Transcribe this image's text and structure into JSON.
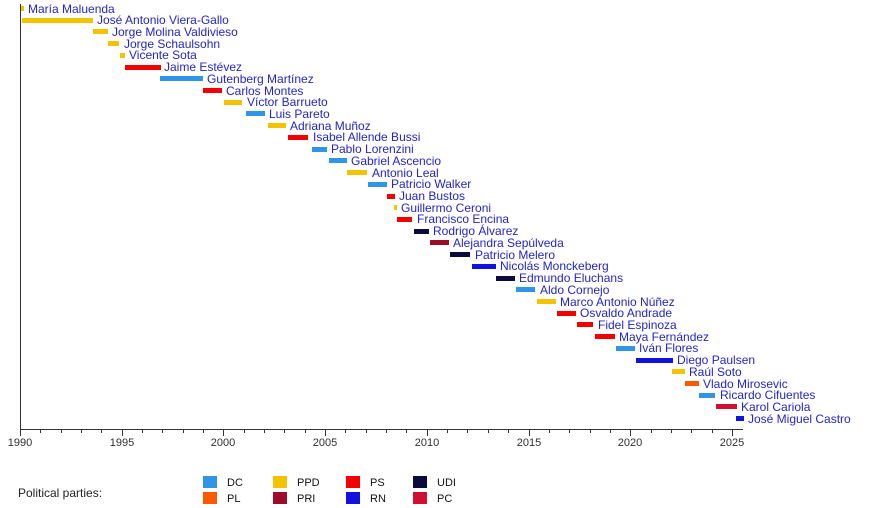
{
  "chart_data": {
    "type": "bar",
    "variant": "horizontal-timeline",
    "title": "",
    "xlabel": "",
    "ylabel": "",
    "grid": false,
    "legend_position": "bottom-left",
    "x_axis": {
      "min": 1990,
      "max": 2025.6,
      "major_ticks": [
        1990,
        1995,
        2000,
        2005,
        2010,
        2015,
        2020,
        2025
      ],
      "minor_tick_interval_years": 1
    },
    "bars": [
      {
        "name": "María Maluenda",
        "party": "PPD",
        "start": 1990.05,
        "end": 1990.2
      },
      {
        "name": "José Antonio Viera-Gallo",
        "party": "PPD",
        "start": 1990.1,
        "end": 1993.6
      },
      {
        "name": "Jorge Molina Valdivieso",
        "party": "PPD",
        "start": 1993.6,
        "end": 1994.35
      },
      {
        "name": "Jorge Schaulsohn",
        "party": "PPD",
        "start": 1994.35,
        "end": 1994.9
      },
      {
        "name": "Vicente Sota",
        "party": "PPD",
        "start": 1994.9,
        "end": 1995.15
      },
      {
        "name": "Jaime Estévez",
        "party": "PS",
        "start": 1995.15,
        "end": 1996.9
      },
      {
        "name": "Gutenberg Martínez",
        "party": "DC",
        "start": 1996.9,
        "end": 1999.0
      },
      {
        "name": "Carlos Montes",
        "party": "PS",
        "start": 1999.0,
        "end": 1999.95
      },
      {
        "name": "Víctor Barrueto",
        "party": "PPD",
        "start": 2000.05,
        "end": 2000.95
      },
      {
        "name": "Luis Pareto",
        "party": "DC",
        "start": 2001.1,
        "end": 2002.05
      },
      {
        "name": "Adriana Muñoz",
        "party": "PPD",
        "start": 2002.2,
        "end": 2003.1
      },
      {
        "name": "Isabel Allende Bussi",
        "party": "PS",
        "start": 2003.2,
        "end": 2004.2
      },
      {
        "name": "Pablo Lorenzini",
        "party": "DC",
        "start": 2004.35,
        "end": 2005.1
      },
      {
        "name": "Gabriel Ascencio",
        "party": "DC",
        "start": 2005.2,
        "end": 2006.1
      },
      {
        "name": "Antonio Leal",
        "party": "PPD",
        "start": 2006.1,
        "end": 2007.1
      },
      {
        "name": "Patricio Walker",
        "party": "DC",
        "start": 2007.1,
        "end": 2008.05
      },
      {
        "name": "Juan Bustos",
        "party": "PS",
        "start": 2008.05,
        "end": 2008.45
      },
      {
        "name": "Guillermo Ceroni",
        "party": "PPD",
        "start": 2008.4,
        "end": 2008.55
      },
      {
        "name": "Francisco Encina",
        "party": "PS",
        "start": 2008.55,
        "end": 2009.3
      },
      {
        "name": "Rodrigo Álvarez",
        "party": "UDI",
        "start": 2009.35,
        "end": 2010.1
      },
      {
        "name": "Alejandra Sepúlveda",
        "party": "PRI",
        "start": 2010.15,
        "end": 2011.1
      },
      {
        "name": "Patricio Melero",
        "party": "UDI",
        "start": 2011.15,
        "end": 2012.15
      },
      {
        "name": "Nicolás Monckeberg",
        "party": "RN",
        "start": 2012.2,
        "end": 2013.4
      },
      {
        "name": "Edmundo Eluchans",
        "party": "UDI",
        "start": 2013.4,
        "end": 2014.35
      },
      {
        "name": "Aldo Cornejo",
        "party": "DC",
        "start": 2014.4,
        "end": 2015.35
      },
      {
        "name": "Marco Antonio Núñez",
        "party": "PPD",
        "start": 2015.4,
        "end": 2016.35
      },
      {
        "name": "Osvaldo Andrade",
        "party": "PS",
        "start": 2016.4,
        "end": 2017.35
      },
      {
        "name": "Fidel Espinoza",
        "party": "PS",
        "start": 2017.4,
        "end": 2018.2
      },
      {
        "name": "Maya Fernández",
        "party": "PS",
        "start": 2018.25,
        "end": 2019.25
      },
      {
        "name": "Iván Flores",
        "party": "DC",
        "start": 2019.3,
        "end": 2020.25
      },
      {
        "name": "Diego Paulsen",
        "party": "RN",
        "start": 2020.3,
        "end": 2022.1
      },
      {
        "name": "Raúl Soto",
        "party": "PPD",
        "start": 2022.05,
        "end": 2022.7
      },
      {
        "name": "Vlado Mirosevic",
        "party": "PL",
        "start": 2022.7,
        "end": 2023.4
      },
      {
        "name": "Ricardo Cifuentes",
        "party": "DC",
        "start": 2023.4,
        "end": 2024.2
      },
      {
        "name": "Karol Cariola",
        "party": "PC",
        "start": 2024.2,
        "end": 2025.25
      },
      {
        "name": "José Miguel Castro",
        "party": "RN",
        "start": 2025.2,
        "end": 2025.6
      }
    ]
  },
  "legend": {
    "title": "Political parties:",
    "items": [
      {
        "code": "DC",
        "color": "#2e95e8"
      },
      {
        "code": "PL",
        "color": "#fc5a00"
      },
      {
        "code": "PPD",
        "color": "#f3c300"
      },
      {
        "code": "PRI",
        "color": "#9e0b28"
      },
      {
        "code": "PS",
        "color": "#f40000"
      },
      {
        "code": "RN",
        "color": "#1212e0"
      },
      {
        "code": "UDI",
        "color": "#0a0a3c"
      },
      {
        "code": "PC",
        "color": "#d20f33"
      }
    ]
  },
  "colors": {
    "label_text": "#2424c8",
    "axis": "#333333",
    "background": "#ffffff"
  }
}
